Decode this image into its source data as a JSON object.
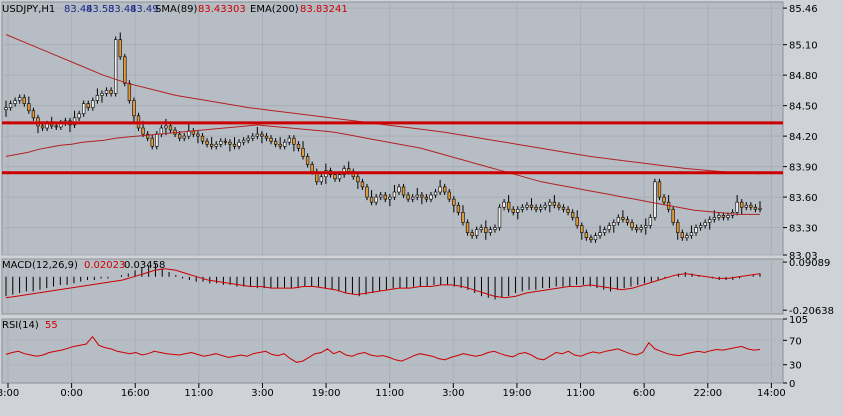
{
  "colors": {
    "background": "#b7bdc4",
    "frame": "#8c9196",
    "grid": "#a9afb6",
    "candle_up": "#f0f0f0",
    "candle_down": "#e39a3a",
    "wick": "#000000",
    "sma": "#b22222",
    "ema": "#b22222",
    "hline": "#cc0000",
    "macd_hist": "#000000",
    "macd_signal": "#cc0000",
    "rsi": "#cc0000",
    "price_text": "#1a2a8a",
    "ind_text": "#cc0000",
    "label_text": "#000000"
  },
  "header": {
    "symbol": "USDJPY,H1",
    "ohlc": [
      "83.44",
      "83.53",
      "83.44",
      "83.49"
    ],
    "sma_label": "SMA(89)",
    "sma_value": "83.43303",
    "ema_label": "EMA(200)",
    "ema_value": "83.83241"
  },
  "macd_header": {
    "label": "MACD(12,26,9)",
    "value1": "0.02023",
    "value2": "0.03458"
  },
  "rsi_header": {
    "label": "RSI(14)",
    "value": "55"
  },
  "chart_data": {
    "type": "candlestick",
    "main": {
      "ylim": [
        83.03,
        85.52
      ],
      "yticks": [
        "85.46",
        "85.10",
        "84.80",
        "84.50",
        "84.20",
        "83.90",
        "83.60",
        "83.30",
        "83.03"
      ],
      "horizontal_lines": [
        84.33,
        83.84
      ],
      "closes": [
        84.48,
        84.52,
        84.55,
        84.58,
        84.52,
        84.45,
        84.38,
        84.3,
        84.28,
        84.32,
        84.3,
        84.29,
        84.33,
        84.35,
        84.31,
        84.38,
        84.42,
        84.52,
        84.48,
        84.55,
        84.6,
        84.62,
        84.65,
        84.62,
        85.15,
        84.98,
        84.72,
        84.55,
        84.4,
        84.28,
        84.22,
        84.18,
        84.1,
        84.22,
        84.28,
        84.3,
        84.26,
        84.22,
        84.18,
        84.2,
        84.25,
        84.22,
        84.2,
        84.15,
        84.12,
        84.1,
        84.12,
        84.15,
        84.14,
        84.12,
        84.1,
        84.14,
        84.16,
        84.18,
        84.2,
        84.22,
        84.2,
        84.18,
        84.15,
        84.12,
        84.1,
        84.14,
        84.18,
        84.12,
        84.08,
        84.0,
        83.92,
        83.85,
        83.75,
        83.8,
        83.86,
        83.82,
        83.78,
        83.82,
        83.88,
        83.85,
        83.8,
        83.75,
        83.7,
        83.6,
        83.55,
        83.6,
        83.62,
        83.58,
        83.6,
        83.65,
        83.7,
        83.62,
        83.58,
        83.6,
        83.62,
        83.6,
        83.58,
        83.62,
        83.65,
        83.7,
        83.65,
        83.58,
        83.52,
        83.45,
        83.35,
        83.25,
        83.22,
        83.28,
        83.3,
        83.25,
        83.28,
        83.3,
        83.5,
        83.55,
        83.48,
        83.45,
        83.48,
        83.5,
        83.52,
        83.5,
        83.48,
        83.5,
        83.52,
        83.55,
        83.52,
        83.5,
        83.48,
        83.45,
        83.4,
        83.32,
        83.25,
        83.2,
        83.18,
        83.22,
        83.25,
        83.28,
        83.32,
        83.35,
        83.4,
        83.38,
        83.35,
        83.3,
        83.28,
        83.3,
        83.32,
        83.4,
        83.75,
        83.6,
        83.55,
        83.48,
        83.35,
        83.25,
        83.2,
        83.22,
        83.25,
        83.3,
        83.32,
        83.35,
        83.38,
        83.4,
        83.42,
        83.4,
        83.42,
        83.45,
        83.55,
        83.5,
        83.52,
        83.5,
        83.48,
        83.49
      ],
      "sma89": [
        84.0,
        84.02,
        84.04,
        84.07,
        84.09,
        84.11,
        84.12,
        84.14,
        84.15,
        84.16,
        84.18,
        84.19,
        84.2,
        84.21,
        84.22,
        84.23,
        84.24,
        84.25,
        84.26,
        84.27,
        84.28,
        84.29,
        84.3,
        84.31,
        84.3,
        84.29,
        84.28,
        84.27,
        84.26,
        84.25,
        84.24,
        84.22,
        84.2,
        84.18,
        84.16,
        84.14,
        84.12,
        84.1,
        84.08,
        84.05,
        84.02,
        83.99,
        83.96,
        83.93,
        83.9,
        83.87,
        83.84,
        83.81,
        83.78,
        83.75,
        83.73,
        83.71,
        83.69,
        83.67,
        83.65,
        83.63,
        83.61,
        83.59,
        83.57,
        83.55,
        83.53,
        83.51,
        83.49,
        83.47,
        83.46,
        83.45,
        83.44,
        83.43,
        83.43,
        83.43
      ],
      "ema200": [
        85.2,
        85.1,
        85.0,
        84.9,
        84.8,
        84.72,
        84.66,
        84.6,
        84.56,
        84.52,
        84.48,
        84.45,
        84.42,
        84.39,
        84.36,
        84.33,
        84.3,
        84.27,
        84.24,
        84.2,
        84.16,
        84.12,
        84.08,
        84.04,
        84.0,
        83.97,
        83.94,
        83.91,
        83.88,
        83.86,
        83.84,
        83.83
      ]
    },
    "macd": {
      "ylim": [
        -0.23,
        0.11
      ],
      "yticks": [
        "0.09089",
        "-0.20638"
      ],
      "histogram": [
        -0.12,
        -0.11,
        -0.1,
        -0.09,
        -0.09,
        -0.08,
        -0.07,
        -0.06,
        -0.05,
        -0.05,
        -0.04,
        -0.03,
        -0.02,
        -0.02,
        -0.01,
        -0.01,
        0.0,
        0.01,
        0.02,
        0.04,
        0.06,
        0.07,
        0.08,
        0.05,
        0.03,
        0.01,
        -0.01,
        -0.02,
        -0.03,
        -0.03,
        -0.04,
        -0.04,
        -0.05,
        -0.05,
        -0.06,
        -0.06,
        -0.06,
        -0.07,
        -0.07,
        -0.07,
        -0.07,
        -0.07,
        -0.07,
        -0.07,
        -0.06,
        -0.06,
        -0.06,
        -0.07,
        -0.08,
        -0.09,
        -0.1,
        -0.11,
        -0.12,
        -0.11,
        -0.1,
        -0.09,
        -0.08,
        -0.07,
        -0.07,
        -0.07,
        -0.06,
        -0.06,
        -0.06,
        -0.05,
        -0.05,
        -0.05,
        -0.06,
        -0.07,
        -0.08,
        -0.1,
        -0.12,
        -0.13,
        -0.14,
        -0.13,
        -0.12,
        -0.1,
        -0.09,
        -0.08,
        -0.08,
        -0.07,
        -0.07,
        -0.06,
        -0.06,
        -0.06,
        -0.05,
        -0.05,
        -0.06,
        -0.07,
        -0.08,
        -0.09,
        -0.08,
        -0.07,
        -0.06,
        -0.05,
        -0.04,
        -0.03,
        -0.02,
        -0.01,
        0.0,
        0.02,
        0.03,
        0.02,
        0.01,
        0.0,
        -0.01,
        -0.02,
        -0.02,
        -0.02,
        -0.01,
        0.0,
        0.01,
        0.02
      ],
      "signal": [
        -0.13,
        -0.12,
        -0.11,
        -0.1,
        -0.09,
        -0.08,
        -0.07,
        -0.06,
        -0.05,
        -0.04,
        -0.03,
        -0.02,
        0.0,
        0.02,
        0.04,
        0.05,
        0.04,
        0.02,
        0.0,
        -0.02,
        -0.03,
        -0.04,
        -0.05,
        -0.06,
        -0.06,
        -0.07,
        -0.07,
        -0.07,
        -0.06,
        -0.06,
        -0.07,
        -0.08,
        -0.1,
        -0.11,
        -0.1,
        -0.09,
        -0.08,
        -0.07,
        -0.07,
        -0.06,
        -0.06,
        -0.05,
        -0.05,
        -0.06,
        -0.08,
        -0.1,
        -0.12,
        -0.13,
        -0.12,
        -0.1,
        -0.09,
        -0.08,
        -0.07,
        -0.06,
        -0.06,
        -0.05,
        -0.06,
        -0.07,
        -0.08,
        -0.07,
        -0.05,
        -0.03,
        -0.01,
        0.01,
        0.02,
        0.01,
        0.0,
        -0.01,
        -0.01,
        0.0,
        0.01,
        0.02
      ]
    },
    "rsi": {
      "ylim": [
        0,
        105
      ],
      "yticks": [
        "105",
        "70",
        "30",
        "0"
      ],
      "values": [
        47,
        50,
        52,
        48,
        46,
        44,
        46,
        50,
        52,
        54,
        57,
        60,
        62,
        64,
        76,
        62,
        58,
        56,
        52,
        50,
        48,
        50,
        46,
        48,
        52,
        50,
        48,
        47,
        46,
        48,
        50,
        47,
        44,
        46,
        48,
        45,
        42,
        44,
        46,
        44,
        48,
        50,
        52,
        47,
        45,
        48,
        40,
        34,
        36,
        42,
        48,
        50,
        56,
        48,
        52,
        46,
        44,
        48,
        50,
        46,
        44,
        45,
        42,
        38,
        36,
        40,
        45,
        48,
        46,
        44,
        40,
        38,
        42,
        45,
        48,
        46,
        44,
        46,
        50,
        52,
        48,
        45,
        43,
        48,
        50,
        46,
        40,
        38,
        44,
        50,
        48,
        52,
        46,
        44,
        48,
        51,
        49,
        52,
        54,
        56,
        52,
        48,
        46,
        50,
        66,
        56,
        52,
        48,
        46,
        45,
        48,
        50,
        52,
        50,
        53,
        55,
        54,
        56,
        58,
        60,
        56,
        54,
        55
      ]
    },
    "x_labels": [
      "8:00",
      "0:00",
      "16:00",
      "11:00",
      "3:00",
      "19:00",
      "11:00",
      "3:00",
      "19:00",
      "11:00",
      "6:00",
      "22:00",
      "14:00"
    ]
  }
}
